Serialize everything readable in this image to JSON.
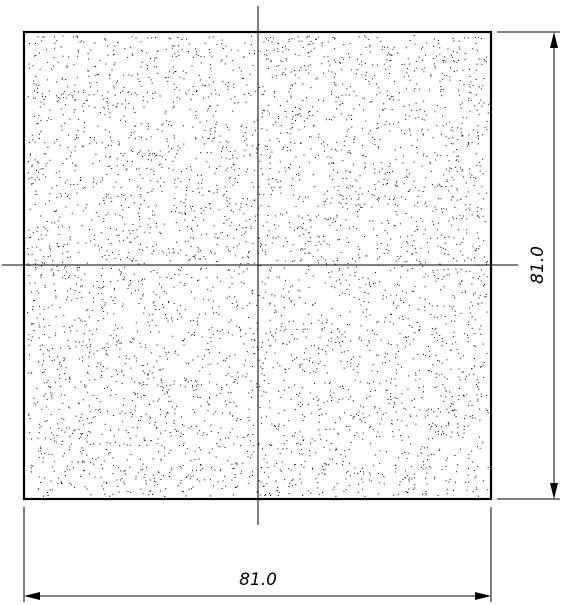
{
  "drawing": {
    "part_shape": "square",
    "fill_pattern": "stipple",
    "line_color": "#000000",
    "background_color": "#ffffff",
    "centerlines": true
  },
  "dimensions": {
    "width_label": "81.0",
    "height_label": "81.0"
  }
}
